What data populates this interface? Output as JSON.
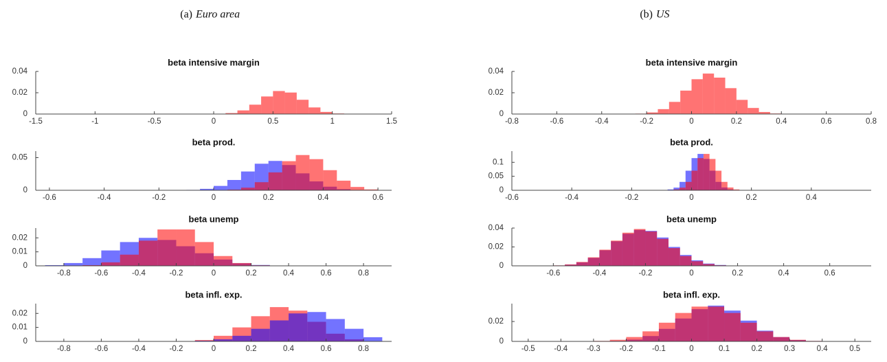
{
  "panels": [
    {
      "label": "(a)",
      "name": "Euro area"
    },
    {
      "label": "(b)",
      "name": "US"
    }
  ],
  "chart_data": [
    {
      "type": "histogram",
      "title": "beta intensive margin",
      "xlim": [
        -1.5,
        1.5
      ],
      "xticks": [
        -1.5,
        -1,
        -0.5,
        0,
        0.5,
        1,
        1.5
      ],
      "ylim": [
        0,
        0.04
      ],
      "yticks": [
        0,
        0.02,
        0.04
      ],
      "bins": [
        0,
        0.1,
        0.2,
        0.3,
        0.4,
        0.5,
        0.6,
        0.7,
        0.8,
        0.9,
        1.0,
        1.1,
        1.2
      ],
      "series": [
        {
          "color": "#ff0000",
          "values": [
            0.0002,
            0.0009,
            0.0034,
            0.0088,
            0.0165,
            0.0216,
            0.0202,
            0.0134,
            0.0062,
            0.002,
            0.0005,
            0.0001
          ]
        }
      ]
    },
    {
      "type": "histogram",
      "title": "beta prod.",
      "xlim": [
        -0.65,
        0.65
      ],
      "xticks": [
        -0.6,
        -0.4,
        -0.2,
        0,
        0.2,
        0.4,
        0.6
      ],
      "ylim": [
        0,
        0.06
      ],
      "yticks": [
        0,
        0.05
      ],
      "bins": [
        -0.1,
        -0.05,
        0,
        0.05,
        0.1,
        0.15,
        0.2,
        0.25,
        0.3,
        0.35,
        0.4,
        0.45,
        0.5,
        0.55,
        0.6
      ],
      "series": [
        {
          "color": "#0000ff",
          "values": [
            0.0006,
            0.0022,
            0.0067,
            0.0158,
            0.0288,
            0.0407,
            0.045,
            0.0387,
            0.0259,
            0.0136,
            0.0055,
            0.0017,
            0.0004,
            0.0001
          ]
        },
        {
          "color": "#ff0000",
          "values": [
            0,
            0,
            0.0002,
            0.001,
            0.004,
            0.0124,
            0.0274,
            0.0446,
            0.054,
            0.0477,
            0.0308,
            0.0147,
            0.0051,
            0.0013
          ]
        }
      ]
    },
    {
      "type": "histogram",
      "title": "beta unemp",
      "xlim": [
        -0.95,
        0.95
      ],
      "xticks": [
        -0.8,
        -0.6,
        -0.4,
        -0.2,
        0,
        0.2,
        0.4,
        0.6,
        0.8
      ],
      "ylim": [
        0,
        0.027
      ],
      "yticks": [
        0,
        0.01,
        0.02
      ],
      "bins": [
        -0.9,
        -0.8,
        -0.7,
        -0.6,
        -0.5,
        -0.4,
        -0.3,
        -0.2,
        -0.1,
        0,
        0.1,
        0.2,
        0.3,
        0.4
      ],
      "series": [
        {
          "color": "#0000ff",
          "values": [
            0.0005,
            0.002,
            0.0055,
            0.011,
            0.017,
            0.02,
            0.0185,
            0.014,
            0.009,
            0.0045,
            0.0018,
            0.0006,
            0.0001
          ]
        },
        {
          "color": "#ff0000",
          "values": [
            0,
            0.0001,
            0.0005,
            0.0025,
            0.008,
            0.018,
            0.026,
            0.026,
            0.017,
            0.007,
            0.002,
            0.0004,
            0
          ]
        }
      ]
    },
    {
      "type": "histogram",
      "title": "beta infl. exp.",
      "xlim": [
        -0.95,
        0.95
      ],
      "xticks": [
        -0.8,
        -0.6,
        -0.4,
        -0.2,
        0,
        0.2,
        0.4,
        0.6,
        0.8
      ],
      "ylim": [
        0,
        0.027
      ],
      "yticks": [
        0,
        0.01,
        0.02
      ],
      "bins": [
        -0.2,
        -0.1,
        0,
        0.1,
        0.2,
        0.3,
        0.4,
        0.5,
        0.6,
        0.7,
        0.8,
        0.9
      ],
      "series": [
        {
          "color": "#ff0000",
          "values": [
            0.0002,
            0.001,
            0.004,
            0.01,
            0.018,
            0.0245,
            0.022,
            0.014,
            0.0055,
            0.0015,
            0.0002
          ]
        },
        {
          "color": "#0000ff",
          "values": [
            0.0001,
            0.0005,
            0.0015,
            0.004,
            0.009,
            0.015,
            0.02,
            0.021,
            0.016,
            0.009,
            0.003
          ]
        }
      ]
    },
    {
      "type": "histogram",
      "title": "beta intensive margin",
      "xlim": [
        -0.8,
        0.8
      ],
      "xticks": [
        -0.8,
        -0.6,
        -0.4,
        -0.2,
        0,
        0.2,
        0.4,
        0.6,
        0.8
      ],
      "ylim": [
        0,
        0.04
      ],
      "yticks": [
        0,
        0.02,
        0.04
      ],
      "bins": [
        -0.3,
        -0.25,
        -0.2,
        -0.15,
        -0.1,
        -0.05,
        0,
        0.05,
        0.1,
        0.15,
        0.2,
        0.25,
        0.3,
        0.35,
        0.4,
        0.45
      ],
      "series": [
        {
          "color": "#ff0000",
          "values": [
            0.0001,
            0.0004,
            0.0015,
            0.0046,
            0.0114,
            0.022,
            0.0327,
            0.038,
            0.0342,
            0.0243,
            0.0133,
            0.0057,
            0.0019,
            0.0005,
            0.0001
          ]
        }
      ]
    },
    {
      "type": "histogram",
      "title": "beta prod.",
      "xlim": [
        -0.6,
        0.6
      ],
      "xticks": [
        -0.6,
        -0.4,
        -0.2,
        0,
        0.2,
        0.4
      ],
      "ylim": [
        0,
        0.14
      ],
      "yticks": [
        0,
        0.05,
        0.1
      ],
      "bins": [
        -0.1,
        -0.08,
        -0.06,
        -0.04,
        -0.02,
        0,
        0.02,
        0.04,
        0.06,
        0.08,
        0.1,
        0.12,
        0.14,
        0.16
      ],
      "series": [
        {
          "color": "#0000ff",
          "values": [
            0.0004,
            0.003,
            0.0095,
            0.03,
            0.07,
            0.115,
            0.13,
            0.112,
            0.07,
            0.03,
            0.01,
            0.003,
            0.0005
          ]
        },
        {
          "color": "#ff0000",
          "values": [
            0,
            0.0004,
            0.003,
            0.0095,
            0.03,
            0.07,
            0.115,
            0.13,
            0.112,
            0.07,
            0.03,
            0.01,
            0.003
          ]
        }
      ]
    },
    {
      "type": "histogram",
      "title": "beta unemp",
      "xlim": [
        -0.78,
        0.78
      ],
      "xticks": [
        -0.6,
        -0.4,
        -0.2,
        0,
        0.2,
        0.4,
        0.6
      ],
      "ylim": [
        0,
        0.04
      ],
      "yticks": [
        0,
        0.02,
        0.04
      ],
      "bins": [
        -0.6,
        -0.55,
        -0.5,
        -0.45,
        -0.4,
        -0.35,
        -0.3,
        -0.25,
        -0.2,
        -0.15,
        -0.1,
        -0.05,
        0,
        0.05,
        0.1,
        0.15,
        0.2
      ],
      "series": [
        {
          "color": "#0000ff",
          "values": [
            0.0004,
            0.0013,
            0.0037,
            0.0085,
            0.0165,
            0.026,
            0.034,
            0.038,
            0.037,
            0.03,
            0.02,
            0.0115,
            0.0058,
            0.0024,
            0.0009,
            0.0003
          ]
        },
        {
          "color": "#ff0000",
          "values": [
            0.0005,
            0.0015,
            0.0041,
            0.009,
            0.0171,
            0.0267,
            0.0351,
            0.039,
            0.0364,
            0.0286,
            0.0188,
            0.0104,
            0.0049,
            0.0019,
            0.0006,
            0.0002
          ]
        }
      ]
    },
    {
      "type": "histogram",
      "title": "beta infl. exp.",
      "xlim": [
        -0.55,
        0.55
      ],
      "xticks": [
        -0.5,
        -0.4,
        -0.3,
        -0.2,
        -0.1,
        0,
        0.1,
        0.2,
        0.3,
        0.4,
        0.5
      ],
      "ylim": [
        0,
        0.038
      ],
      "yticks": [
        0,
        0.02
      ],
      "bins": [
        -0.35,
        -0.3,
        -0.25,
        -0.2,
        -0.15,
        -0.1,
        -0.05,
        0,
        0.05,
        0.1,
        0.15,
        0.2,
        0.25,
        0.3,
        0.35,
        0.4
      ],
      "series": [
        {
          "color": "#0000ff",
          "values": [
            0,
            0.0001,
            0.0005,
            0.0018,
            0.0054,
            0.0126,
            0.023,
            0.0324,
            0.036,
            0.031,
            0.0209,
            0.0108,
            0.0043,
            0.0014,
            0.0004
          ]
        },
        {
          "color": "#ff0000",
          "values": [
            0.0001,
            0.0005,
            0.0016,
            0.0044,
            0.0101,
            0.0188,
            0.0286,
            0.035,
            0.035,
            0.0286,
            0.0188,
            0.0101,
            0.0044,
            0.0016,
            0.0005
          ]
        }
      ]
    }
  ]
}
